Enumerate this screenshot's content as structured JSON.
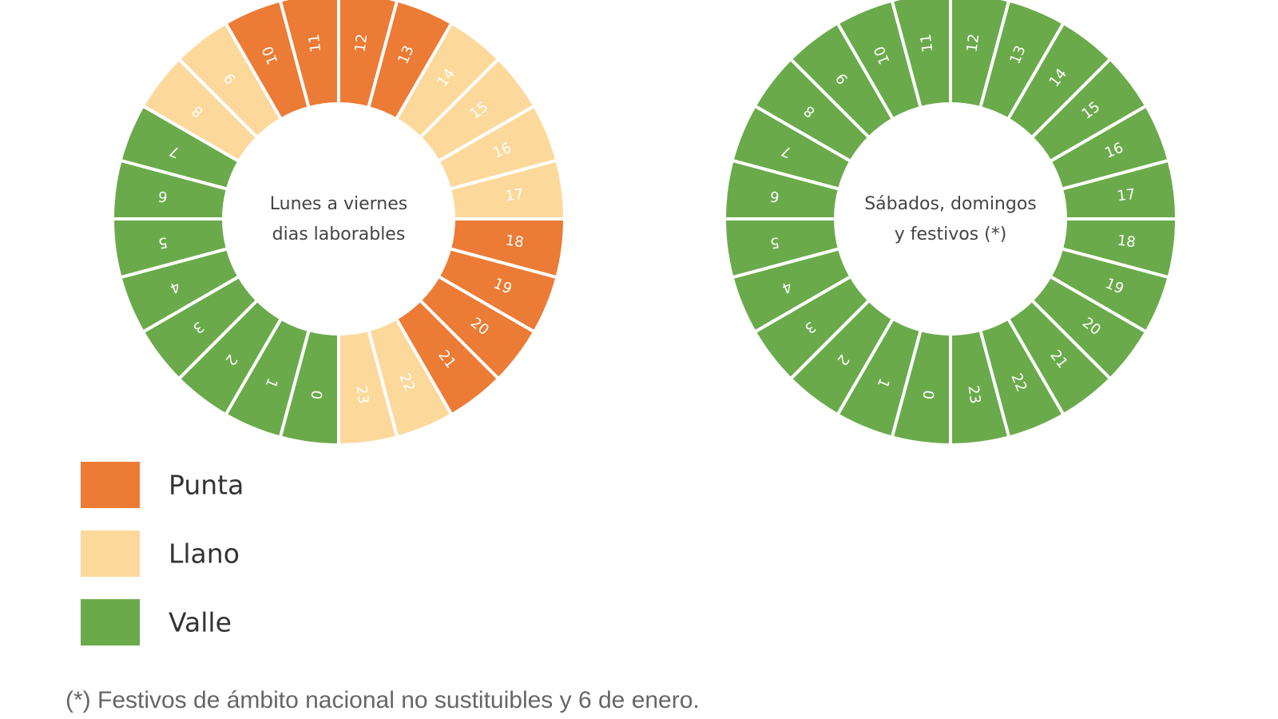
{
  "legend": [
    {
      "name": "Punta",
      "color": "#ec7b35"
    },
    {
      "name": "Llano",
      "color": "#fcd99b"
    },
    {
      "name": "Valle",
      "color": "#6aaa4b"
    }
  ],
  "rings": [
    {
      "label": [
        "Lunes a viernes",
        "dias laborables"
      ],
      "segments": [
        {
          "hour": "0",
          "period": "Valle"
        },
        {
          "hour": "1",
          "period": "Valle"
        },
        {
          "hour": "2",
          "period": "Valle"
        },
        {
          "hour": "3",
          "period": "Valle"
        },
        {
          "hour": "4",
          "period": "Valle"
        },
        {
          "hour": "5",
          "period": "Valle"
        },
        {
          "hour": "6",
          "period": "Valle"
        },
        {
          "hour": "7",
          "period": "Valle"
        },
        {
          "hour": "8",
          "period": "Llano"
        },
        {
          "hour": "9",
          "period": "Llano"
        },
        {
          "hour": "10",
          "period": "Punta"
        },
        {
          "hour": "11",
          "period": "Punta"
        },
        {
          "hour": "12",
          "period": "Punta"
        },
        {
          "hour": "13",
          "period": "Punta"
        },
        {
          "hour": "14",
          "period": "Llano"
        },
        {
          "hour": "15",
          "period": "Llano"
        },
        {
          "hour": "16",
          "period": "Llano"
        },
        {
          "hour": "17",
          "period": "Llano"
        },
        {
          "hour": "18",
          "period": "Punta"
        },
        {
          "hour": "19",
          "period": "Punta"
        },
        {
          "hour": "20",
          "period": "Punta"
        },
        {
          "hour": "21",
          "period": "Punta"
        },
        {
          "hour": "22",
          "period": "Llano"
        },
        {
          "hour": "23",
          "period": "Llano"
        }
      ]
    },
    {
      "label": [
        "Sábados, domingos",
        "y festivos (*)"
      ],
      "segments": [
        {
          "hour": "0",
          "period": "Valle"
        },
        {
          "hour": "1",
          "period": "Valle"
        },
        {
          "hour": "2",
          "period": "Valle"
        },
        {
          "hour": "3",
          "period": "Valle"
        },
        {
          "hour": "4",
          "period": "Valle"
        },
        {
          "hour": "5",
          "period": "Valle"
        },
        {
          "hour": "6",
          "period": "Valle"
        },
        {
          "hour": "7",
          "period": "Valle"
        },
        {
          "hour": "8",
          "period": "Valle"
        },
        {
          "hour": "9",
          "period": "Valle"
        },
        {
          "hour": "10",
          "period": "Valle"
        },
        {
          "hour": "11",
          "period": "Valle"
        },
        {
          "hour": "12",
          "period": "Valle"
        },
        {
          "hour": "13",
          "period": "Valle"
        },
        {
          "hour": "14",
          "period": "Valle"
        },
        {
          "hour": "15",
          "period": "Valle"
        },
        {
          "hour": "16",
          "period": "Valle"
        },
        {
          "hour": "17",
          "period": "Valle"
        },
        {
          "hour": "18",
          "period": "Valle"
        },
        {
          "hour": "19",
          "period": "Valle"
        },
        {
          "hour": "20",
          "period": "Valle"
        },
        {
          "hour": "21",
          "period": "Valle"
        },
        {
          "hour": "22",
          "period": "Valle"
        },
        {
          "hour": "23",
          "period": "Valle"
        }
      ]
    }
  ],
  "footnote": "(*) Festivos de ámbito nacional no sustituibles y 6 de enero."
}
